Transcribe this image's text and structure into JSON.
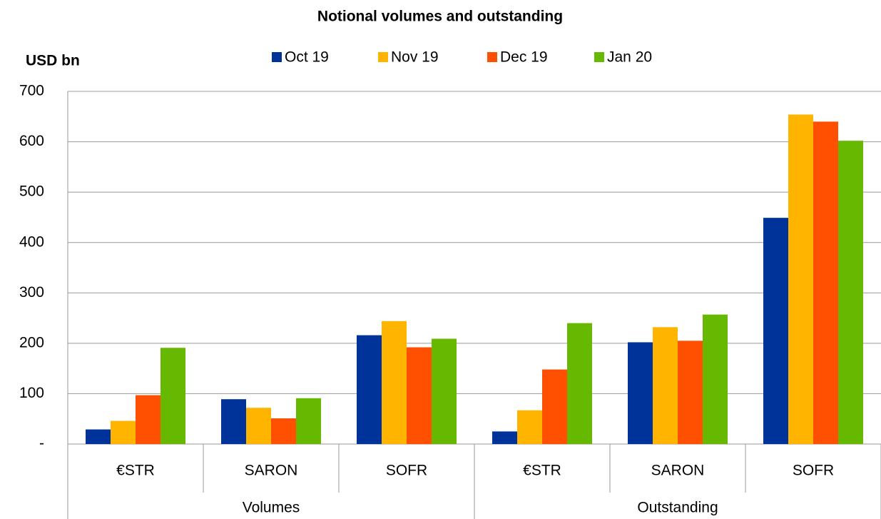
{
  "chart_data": {
    "type": "bar",
    "title": "Notional volumes and  outstanding",
    "ylabel": "USD bn",
    "categories": [
      "€STR",
      "SARON",
      "SOFR",
      "€STR",
      "SARON",
      "SOFR"
    ],
    "groups": [
      "Volumes",
      "Outstanding"
    ],
    "series": [
      {
        "name": "Oct 19",
        "color": "#003399",
        "values": [
          29,
          89,
          216,
          25,
          202,
          449
        ]
      },
      {
        "name": "Nov 19",
        "color": "#ffb400",
        "values": [
          46,
          72,
          244,
          67,
          232,
          654
        ]
      },
      {
        "name": "Dec 19",
        "color": "#ff4f00",
        "values": [
          97,
          51,
          192,
          148,
          205,
          640
        ]
      },
      {
        "name": "Jan 20",
        "color": "#66b900",
        "values": [
          191,
          91,
          209,
          240,
          257,
          602
        ]
      }
    ],
    "ylim": [
      0,
      700
    ],
    "yticks": [
      {
        "value": 0,
        "label": "-"
      },
      100,
      200,
      300,
      400,
      500,
      600,
      700
    ],
    "grid": true,
    "legend": "top"
  }
}
